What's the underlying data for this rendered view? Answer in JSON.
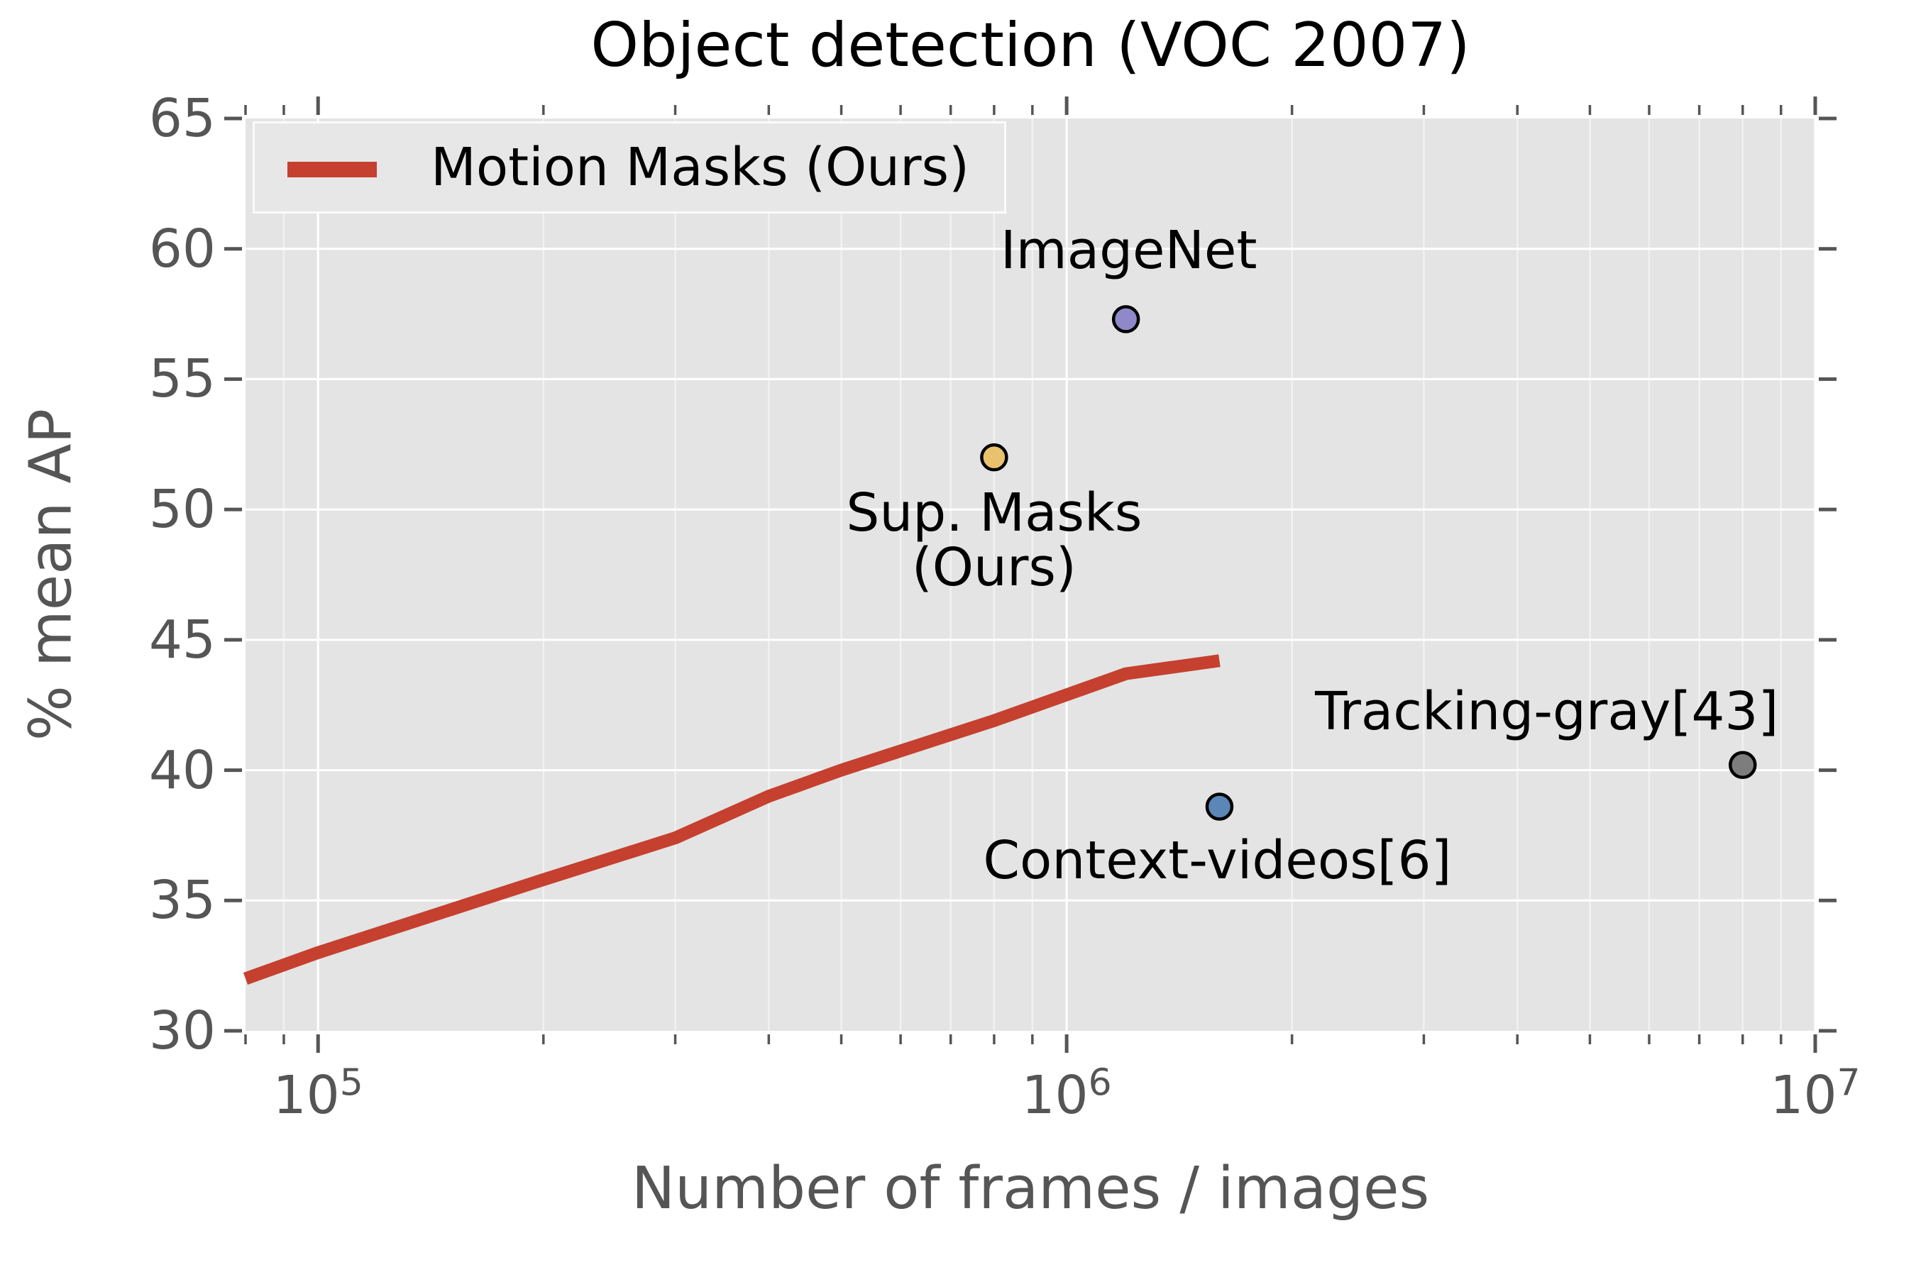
{
  "title": "Object detection (VOC 2007)",
  "axes": {
    "xlabel": "Number of frames / images",
    "ylabel": "% mean AP",
    "x_major_ticks": [
      {
        "value": 100000,
        "base": "10",
        "exp": "5"
      },
      {
        "value": 1000000,
        "base": "10",
        "exp": "6"
      },
      {
        "value": 10000000,
        "base": "10",
        "exp": "7"
      }
    ],
    "y_ticks": [
      65,
      60,
      55,
      50,
      45,
      40,
      35,
      30
    ]
  },
  "legend": {
    "label": "Motion Masks (Ours)",
    "position": "upper left"
  },
  "colors": {
    "plot_background": "#e4e4e4",
    "grid_major": "#ffffff",
    "grid_minor": "#f1f1f1",
    "tick": "#555555",
    "tick_label": "#555555",
    "title": "#000000",
    "line_red": "#c5402f",
    "imagenet_purple": "#8f88c9",
    "sup_masks_yellow": "#eac16d",
    "context_blue": "#5a87b8",
    "tracking_gray": "#7d7d7d",
    "marker_edge": "#000000"
  },
  "chart_data": {
    "type": "line+scatter",
    "title": "Object detection (VOC 2007)",
    "xlabel": "Number of frames / images",
    "ylabel": "% mean AP",
    "x_scale": "log",
    "xlim": [
      80000,
      10000000
    ],
    "ylim": [
      30,
      65
    ],
    "grid": true,
    "legend_position": "upper left",
    "series": [
      {
        "name": "Motion Masks (Ours)",
        "color": "#c5402f",
        "points": [
          [
            80000,
            32.0
          ],
          [
            100000,
            33.0
          ],
          [
            200000,
            35.8
          ],
          [
            300000,
            37.4
          ],
          [
            400000,
            39.0
          ],
          [
            500000,
            40.0
          ],
          [
            800000,
            41.9
          ],
          [
            1200000,
            43.7
          ],
          [
            1600000,
            44.2
          ]
        ]
      }
    ],
    "points": [
      {
        "label": "ImageNet",
        "x": 1200000,
        "y": 57.3,
        "color": "#8f88c9"
      },
      {
        "label": "Sup. Masks (Ours)",
        "x": 800000,
        "y": 52.0,
        "color": "#eac16d"
      },
      {
        "label": "Context-videos[6]",
        "x": 1600000,
        "y": 38.6,
        "color": "#5a87b8"
      },
      {
        "label": "Tracking-gray[43]",
        "x": 8000000,
        "y": 40.2,
        "color": "#7d7d7d"
      }
    ],
    "annotations": [
      {
        "lines": [
          "ImageNet"
        ],
        "x": 1200000,
        "y": 57.3,
        "dx": 4,
        "side": "above",
        "gap": 58
      },
      {
        "lines": [
          "Sup. Masks",
          "(Ours)"
        ],
        "x": 800000,
        "y": 52.0,
        "dx": 0,
        "side": "below",
        "gap": 40
      },
      {
        "lines": [
          "Context-videos[6]"
        ],
        "x": 1600000,
        "y": 38.6,
        "dx": -3,
        "side": "below",
        "gap": 38
      },
      {
        "lines": [
          "Tracking-gray[43]"
        ],
        "x": 8000000,
        "y": 40.2,
        "dx": -276,
        "side": "above",
        "gap": 36
      }
    ]
  }
}
